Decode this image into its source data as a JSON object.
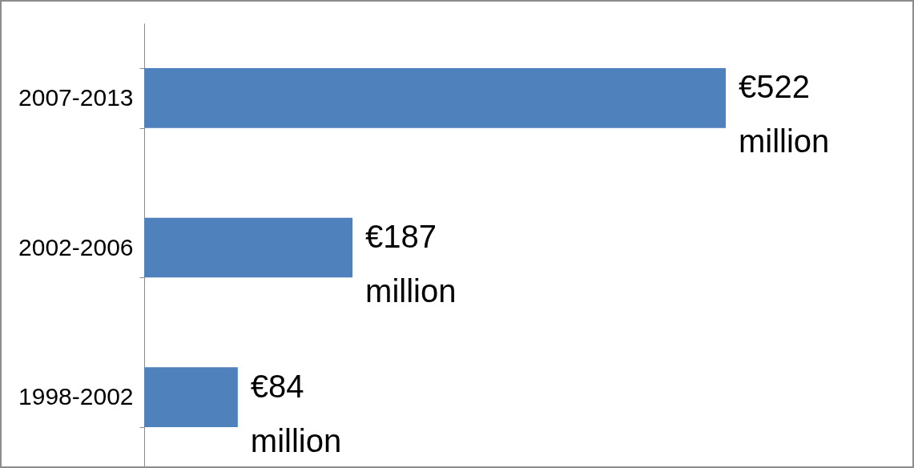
{
  "chart_data": {
    "type": "bar",
    "orientation": "horizontal",
    "categories": [
      "2007-2013",
      "2002-2006",
      "1998-2002"
    ],
    "values": [
      522,
      187,
      84
    ],
    "value_labels": [
      "€522 million",
      "€187 million",
      "€84 million"
    ],
    "color": "#4f81bd"
  }
}
